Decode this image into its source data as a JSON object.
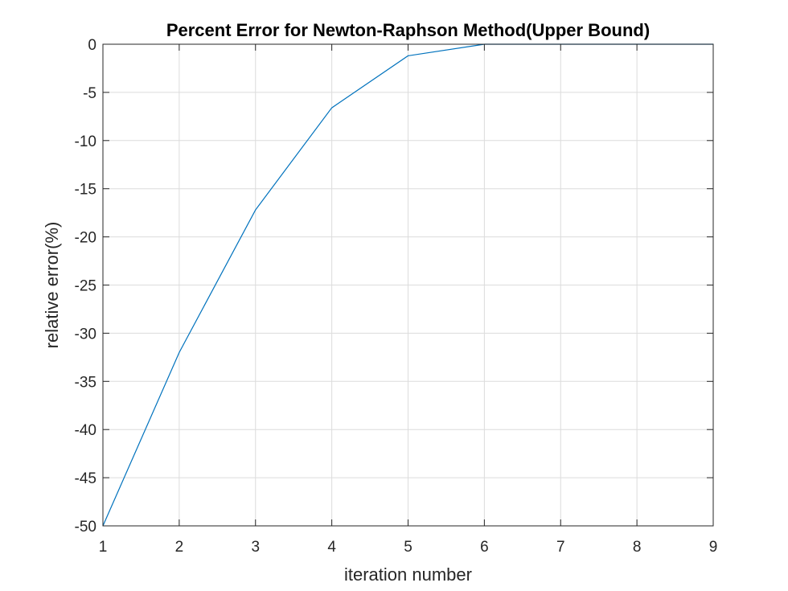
{
  "chart_data": {
    "type": "line",
    "title": "Percent Error for Newton-Raphson Method(Upper Bound)",
    "xlabel": "iteration number",
    "ylabel": "relative error(%)",
    "xlim": [
      1,
      9
    ],
    "ylim": [
      -50,
      0
    ],
    "xticks": [
      1,
      2,
      3,
      4,
      5,
      6,
      7,
      8,
      9
    ],
    "yticks": [
      0,
      -5,
      -10,
      -15,
      -20,
      -25,
      -30,
      -35,
      -40,
      -45,
      -50
    ],
    "grid": true,
    "series": [
      {
        "color": "#0072BD",
        "x": [
          1,
          2,
          3,
          4,
          5,
          6,
          7,
          8,
          9
        ],
        "y": [
          -50,
          -32,
          -17.2,
          -6.6,
          -1.2,
          0,
          0,
          0,
          0
        ]
      }
    ]
  }
}
